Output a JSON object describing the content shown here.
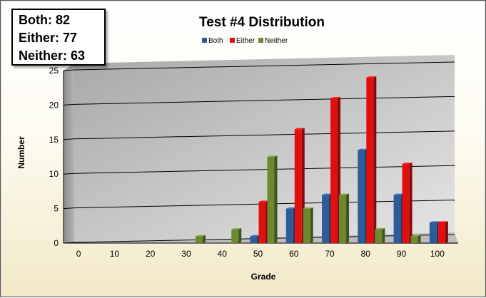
{
  "stats": [
    {
      "label": "Both:",
      "value": "82"
    },
    {
      "label": "Either:",
      "value": "77"
    },
    {
      "label": "Neither:",
      "value": "63"
    }
  ],
  "chart_data": {
    "type": "bar",
    "title": "Test #4 Distribution",
    "xlabel": "Grade",
    "ylabel": "Number",
    "categories": [
      "0",
      "10",
      "20",
      "30",
      "40",
      "50",
      "60",
      "70",
      "80",
      "90",
      "100"
    ],
    "series": [
      {
        "name": "Both",
        "color": "#2e5c9a",
        "values": [
          0,
          0,
          0,
          0,
          0,
          1,
          5,
          7,
          13.5,
          7,
          3
        ]
      },
      {
        "name": "Either",
        "color": "#e01010",
        "values": [
          0,
          0,
          0,
          0,
          0,
          6,
          16.5,
          21,
          24,
          11.5,
          3
        ]
      },
      {
        "name": "Neither",
        "color": "#6b8a30",
        "values": [
          0,
          0,
          0,
          1,
          2,
          12.5,
          5,
          7,
          2,
          1,
          0
        ]
      }
    ],
    "ylim": [
      0,
      25
    ],
    "yticks": [
      0,
      5,
      10,
      15,
      20,
      25
    ],
    "grid": true,
    "legend_position": "top"
  }
}
